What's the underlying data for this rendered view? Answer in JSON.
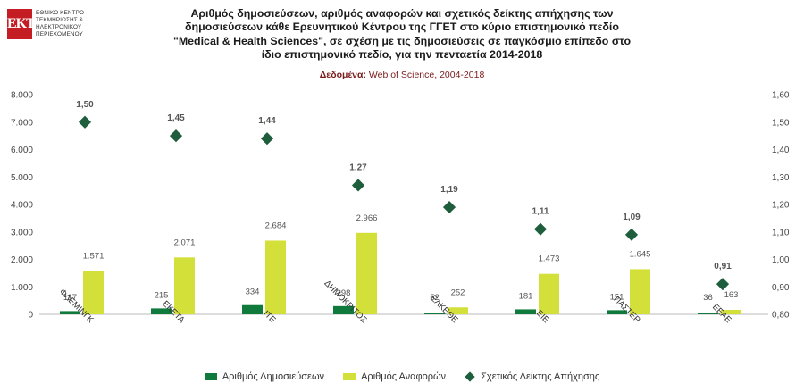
{
  "logo": {
    "mark": "ΕΚΤ",
    "lines": [
      "ΕΘΝΙΚΟ ΚΕΝΤΡΟ",
      "ΤΕΚΜΗΡΙΩΣΗΣ &",
      "ΗΛΕΚΤΡΟΝΙΚΟΥ",
      "ΠΕΡΙΕΧΟΜΕΝΟΥ"
    ]
  },
  "header": {
    "title_lines": [
      "Αριθμός δημοσιεύσεων, αριθμός αναφορών και σχετικός δείκτης απήχησης των",
      "δημοσιεύσεων κάθε Ερευνητικού Κέντρου της ΓΓΕΤ στο κύριο επιστημονικό πεδίο",
      "\"Medical & Health Sciences\", σε σχέση με τις δημοσιεύσεις σε παγκόσμιο επίπεδο στο",
      "ίδιο επιστημονικό πεδίο, για την πενταετία 2014-2018"
    ],
    "source_label": "Δεδομένα:",
    "source_value": "Web of Science, 2004-2018"
  },
  "chart_data": {
    "type": "bar",
    "categories": [
      "ΦΛΕΜΙΝΓΚ",
      "ΕΚΕΤΑ",
      "ΙΤΕ",
      "ΔΗΜΟΚΡΙΤΟΣ",
      "ΕΛΚΕΘΕ",
      "ΕΙΕ",
      "ΠΑΣΤΕΡ",
      "ΕΕΑΕ"
    ],
    "series": [
      {
        "name": "Αριθμός Δημοσιεύσεων",
        "type": "bar",
        "axis": "left",
        "color": "#0f7a3c",
        "values": [
          117,
          215,
          334,
          298,
          52,
          181,
          151,
          36
        ],
        "labels": [
          "117",
          "215",
          "334",
          "298",
          "52",
          "181",
          "151",
          "36"
        ]
      },
      {
        "name": "Αριθμός Αναφορών",
        "type": "bar",
        "axis": "left",
        "color": "#d4e03a",
        "values": [
          1571,
          2071,
          2684,
          2966,
          252,
          1473,
          1645,
          163
        ],
        "labels": [
          "1.571",
          "2.071",
          "2.684",
          "2.966",
          "252",
          "1.473",
          "1.645",
          "163"
        ]
      },
      {
        "name": "Σχετικός Δείκτης Απήχησης",
        "type": "scatter",
        "marker": "diamond",
        "axis": "right",
        "color": "#1e5e3c",
        "values": [
          1.5,
          1.45,
          1.44,
          1.27,
          1.19,
          1.11,
          1.09,
          0.91
        ],
        "labels": [
          "1,50",
          "1,45",
          "1,44",
          "1,27",
          "1,19",
          "1,11",
          "1,09",
          "0,91"
        ]
      }
    ],
    "ylim": [
      0,
      8000
    ],
    "y_ticks": [
      0,
      1000,
      2000,
      3000,
      4000,
      5000,
      6000,
      7000,
      8000
    ],
    "y_tick_labels": [
      "0",
      "1.000",
      "2.000",
      "3.000",
      "4.000",
      "5.000",
      "6.000",
      "7.000",
      "8.000"
    ],
    "y2lim": [
      0.8,
      1.6
    ],
    "y2_ticks": [
      0.8,
      0.9,
      1.0,
      1.1,
      1.2,
      1.3,
      1.4,
      1.5,
      1.6
    ],
    "y2_tick_labels": [
      "0,80",
      "0,90",
      "1,00",
      "1,10",
      "1,20",
      "1,30",
      "1,40",
      "1,50",
      "1,60"
    ],
    "grid": false,
    "legend_position": "bottom"
  }
}
